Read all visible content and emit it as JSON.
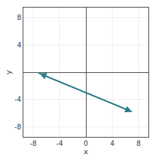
{
  "chart_data": {
    "type": "line",
    "x": [
      -7.2,
      7.0
    ],
    "values": [
      -0.12,
      -5.8
    ],
    "color": "#2e7d8c",
    "xlabel": "x",
    "ylabel": "y",
    "xlim": [
      -9.5,
      9.5
    ],
    "ylim": [
      -9.5,
      9.5
    ],
    "xticks": [
      -8,
      -4,
      0,
      4,
      8
    ],
    "yticks": [
      -8,
      -4,
      4,
      8
    ],
    "grid": true
  }
}
